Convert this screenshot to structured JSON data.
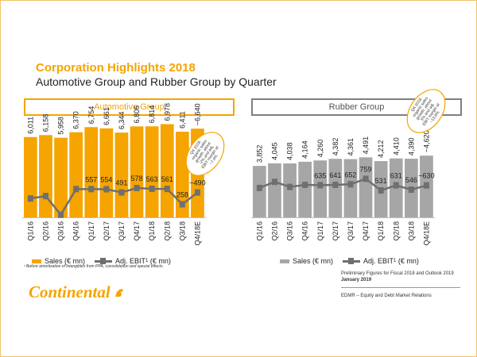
{
  "header": {
    "title": "Corporation Highlights 2018",
    "subtitle": "Automotive Group and Rubber Group by Quarter"
  },
  "colors": {
    "accent": "#f5a400",
    "rubber_bar": "#a6a6a6",
    "ebit_line": "#6f6f6f"
  },
  "chart_data": [
    {
      "type": "bar",
      "title": "Automotive Group",
      "categories": [
        "Q1/16",
        "Q2/16",
        "Q3/16",
        "Q4/16",
        "Q1/17",
        "Q2/17",
        "Q3/17",
        "Q4/17",
        "Q1/18",
        "Q2/18",
        "Q3/18",
        "Q4/18E"
      ],
      "series": [
        {
          "name": "Sales (€ mn)",
          "kind": "bar",
          "values": [
            6011,
            6158,
            5958,
            6370,
            6754,
            6661,
            6344,
            6806,
            6814,
            6978,
            6411,
            6640
          ]
        },
        {
          "name": "Adj. EBIT (€ mn)",
          "kind": "line",
          "values": [
            372,
            420,
            52,
            557,
            557,
            554,
            491,
            578,
            563,
            561,
            258,
            490
          ]
        }
      ],
      "sales_labels": [
        "6,011",
        "6,158",
        "5,958",
        "6,370",
        "6,754",
        "6,661",
        "6,344",
        "6,806",
        "6,814",
        "6,978",
        "6,411",
        "~6,640"
      ],
      "ebit_labels": [
        "",
        "",
        "",
        "",
        "557",
        "554",
        "491",
        "578",
        "563",
        "561",
        "258",
        "~490"
      ],
      "sales_ylim": [
        0,
        7600
      ],
      "ebit_ylim": [
        0,
        2000
      ],
      "legend": {
        "sales": "Sales (€ mn)",
        "ebit": "Adj. EBIT",
        "ebit_sup": "1",
        "ebit_unit": "(€ mn)"
      },
      "callout": [
        "Q4 2018:",
        "organic sales",
        "growth: about",
        "-2% and adj.",
        "EBIT margin at",
        "~7.4%"
      ]
    },
    {
      "type": "bar",
      "title": "Rubber Group",
      "categories": [
        "Q1/16",
        "Q2/16",
        "Q3/16",
        "Q4/16",
        "Q1/17",
        "Q2/17",
        "Q3/17",
        "Q4/17",
        "Q1/18",
        "Q2/18",
        "Q3/18",
        "Q4/18E"
      ],
      "series": [
        {
          "name": "Sales (€ mn)",
          "kind": "bar",
          "values": [
            3852,
            4045,
            4038,
            4164,
            4260,
            4382,
            4361,
            4491,
            4212,
            4410,
            4390,
            4620
          ]
        },
        {
          "name": "Adj. EBIT (€ mn)",
          "kind": "line",
          "values": [
            580,
            700,
            600,
            640,
            635,
            641,
            652,
            759,
            531,
            631,
            546,
            630
          ]
        }
      ],
      "sales_labels": [
        "3,852",
        "4,045",
        "4,038",
        "4,164",
        "4,260",
        "4,382",
        "4,361",
        "4,491",
        "4,212",
        "4,410",
        "4,390",
        "~4,620"
      ],
      "ebit_labels": [
        "",
        "",
        "",
        "",
        "635",
        "641",
        "652",
        "759",
        "531",
        "631",
        "546",
        "~630"
      ],
      "sales_ylim": [
        0,
        7600
      ],
      "ebit_ylim": [
        0,
        2000
      ],
      "legend": {
        "sales": "Sales (€ mn)",
        "ebit": "Adj. EBIT",
        "ebit_sup": "1",
        "ebit_unit": "(€ mn)"
      },
      "callout": [
        "Q4 2018:",
        "organic sales",
        "growth: about",
        "3% and adj.",
        "EBIT margin at",
        "~13.6%"
      ]
    }
  ],
  "footnote": "¹ Before amortization of intangibles from PPA, consolidation and special effects.",
  "footer": {
    "logo_text": "Continental",
    "prelim": "Preliminary Figures for Fiscal 2018 and Outlook 2019",
    "date": "January 2019",
    "edmr": "EDMR – Equity and Debt Market Relations"
  }
}
